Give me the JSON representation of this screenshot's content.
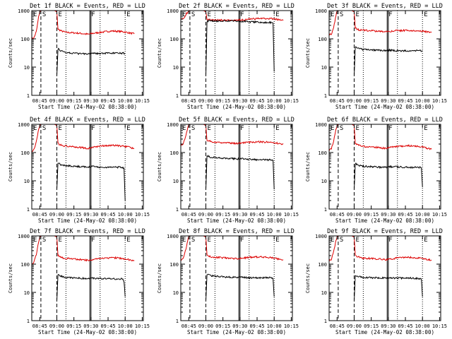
{
  "figure": {
    "panel_title_template": "Det {det} BLACK = Events, RED = LLD",
    "x_axis_label": "Start Time (24-May-02 08:38:00)",
    "y_axis_label": "Counts/sec",
    "x_tick_labels": [
      "08:45",
      "09:00",
      "09:15",
      "09:30",
      "09:45",
      "10:00",
      "10:15"
    ],
    "y_tick_labels": [
      "1",
      "10",
      "100",
      "1000"
    ],
    "marker_labels": [
      "E",
      "S",
      "E",
      "F",
      "E"
    ],
    "events_color": "#000000",
    "lld_color": "#dd0000"
  },
  "chart_data": [
    {
      "type": "line",
      "title": "Det 1f BLACK = Events, RED = LLD",
      "xlabel": "Start Time (24-May-02 08:38:00)",
      "ylabel": "Counts/sec",
      "x_unit": "minutes after 08:38:00",
      "xlim": [
        0,
        98
      ],
      "ylim": [
        1,
        1000
      ],
      "y_scale": "log",
      "legend": "none",
      "markers": [
        {
          "x": 0,
          "label": "E"
        },
        {
          "x": 8,
          "label": "S"
        },
        {
          "x": 22,
          "label": "E"
        },
        {
          "x": 51,
          "label": "F"
        },
        {
          "x": 82,
          "label": "E"
        }
      ],
      "series": [
        {
          "color": "#dd0000",
          "x": [
            0,
            2,
            4,
            6,
            7,
            8,
            13,
            20,
            22,
            23,
            26,
            30,
            40,
            50,
            53,
            60,
            70,
            80,
            90
          ],
          "y": [
            100,
            110,
            180,
            600,
            900,
            1000,
            1000,
            1000,
            900,
            220,
            190,
            170,
            160,
            145,
            155,
            170,
            190,
            180,
            150
          ]
        },
        {
          "color": "#000000",
          "x": [
            22,
            23,
            25,
            30,
            40,
            50,
            53,
            60,
            70,
            82
          ],
          "y": [
            5,
            45,
            38,
            33,
            30,
            30,
            32,
            30,
            31,
            31
          ]
        }
      ]
    },
    {
      "type": "line",
      "title": "Det 2f BLACK = Events, RED = LLD",
      "xlabel": "Start Time (24-May-02 08:38:00)",
      "ylabel": "Counts/sec",
      "x_unit": "minutes after 08:38:00",
      "xlim": [
        0,
        98
      ],
      "ylim": [
        1,
        1000
      ],
      "y_scale": "log",
      "legend": "none",
      "markers": [
        {
          "x": 0,
          "label": "E"
        },
        {
          "x": 8,
          "label": "S"
        },
        {
          "x": 22,
          "label": "E"
        },
        {
          "x": 51,
          "label": "F"
        },
        {
          "x": 82,
          "label": "E"
        }
      ],
      "series": [
        {
          "color": "#dd0000",
          "x": [
            0,
            3,
            5,
            7,
            8,
            13,
            20,
            22,
            23,
            26,
            30,
            40,
            50,
            53,
            60,
            70,
            80,
            90
          ],
          "y": [
            500,
            520,
            800,
            950,
            1000,
            1000,
            1000,
            900,
            480,
            470,
            460,
            460,
            460,
            470,
            500,
            520,
            520,
            450
          ]
        },
        {
          "color": "#000000",
          "x": [
            22,
            23,
            25,
            30,
            40,
            50,
            53,
            60,
            70,
            80,
            81,
            82
          ],
          "y": [
            5,
            420,
            440,
            430,
            430,
            430,
            420,
            400,
            380,
            380,
            360,
            7
          ]
        }
      ]
    },
    {
      "type": "line",
      "title": "Det 3f BLACK = Events, RED = LLD",
      "xlabel": "Start Time (24-May-02 08:38:00)",
      "ylabel": "Counts/sec",
      "x_unit": "minutes after 08:38:00",
      "xlim": [
        0,
        98
      ],
      "ylim": [
        1,
        1000
      ],
      "y_scale": "log",
      "legend": "none",
      "markers": [
        {
          "x": 0,
          "label": "E"
        },
        {
          "x": 8,
          "label": "S"
        },
        {
          "x": 22,
          "label": "E"
        },
        {
          "x": 51,
          "label": "F"
        },
        {
          "x": 82,
          "label": "E"
        }
      ],
      "series": [
        {
          "color": "#dd0000",
          "x": [
            0,
            2,
            4,
            6,
            7,
            8,
            13,
            20,
            22,
            23,
            26,
            30,
            40,
            50,
            53,
            60,
            70,
            80,
            90
          ],
          "y": [
            140,
            150,
            250,
            700,
            950,
            1000,
            1000,
            1000,
            900,
            240,
            210,
            200,
            190,
            180,
            185,
            195,
            200,
            190,
            170
          ]
        },
        {
          "color": "#000000",
          "x": [
            22,
            23,
            25,
            30,
            40,
            50,
            53,
            60,
            70,
            82
          ],
          "y": [
            5,
            55,
            46,
            42,
            40,
            38,
            40,
            38,
            38,
            38
          ]
        }
      ]
    },
    {
      "type": "line",
      "title": "Det 4f BLACK = Events, RED = LLD",
      "xlabel": "Start Time (24-May-02 08:38:00)",
      "ylabel": "Counts/sec",
      "x_unit": "minutes after 08:38:00",
      "xlim": [
        0,
        98
      ],
      "ylim": [
        1,
        1000
      ],
      "y_scale": "log",
      "legend": "none",
      "markers": [
        {
          "x": 0,
          "label": "E"
        },
        {
          "x": 8,
          "label": "S"
        },
        {
          "x": 22,
          "label": "E"
        },
        {
          "x": 51,
          "label": "F"
        },
        {
          "x": 82,
          "label": "E"
        }
      ],
      "series": [
        {
          "color": "#dd0000",
          "x": [
            0,
            2,
            4,
            6,
            7,
            8,
            13,
            20,
            22,
            23,
            26,
            30,
            40,
            50,
            53,
            60,
            70,
            80,
            90
          ],
          "y": [
            110,
            130,
            250,
            650,
            900,
            1000,
            1000,
            1000,
            900,
            210,
            180,
            170,
            155,
            140,
            150,
            170,
            180,
            170,
            140
          ]
        },
        {
          "color": "#000000",
          "x": [
            22,
            23,
            25,
            30,
            40,
            50,
            53,
            60,
            70,
            80,
            81,
            82
          ],
          "y": [
            5,
            45,
            38,
            34,
            32,
            31,
            32,
            30,
            30,
            30,
            28,
            2
          ]
        }
      ]
    },
    {
      "type": "line",
      "title": "Det 5f BLACK = Events, RED = LLD",
      "xlabel": "Start Time (24-May-02 08:38:00)",
      "ylabel": "Counts/sec",
      "x_unit": "minutes after 08:38:00",
      "xlim": [
        0,
        98
      ],
      "ylim": [
        1,
        1000
      ],
      "y_scale": "log",
      "legend": "none",
      "markers": [
        {
          "x": 0,
          "label": "E"
        },
        {
          "x": 8,
          "label": "S"
        },
        {
          "x": 22,
          "label": "E"
        },
        {
          "x": 51,
          "label": "F"
        },
        {
          "x": 82,
          "label": "E"
        }
      ],
      "series": [
        {
          "color": "#dd0000",
          "x": [
            0,
            2,
            4,
            6,
            7,
            8,
            13,
            20,
            22,
            23,
            26,
            30,
            40,
            50,
            53,
            60,
            70,
            80,
            90
          ],
          "y": [
            180,
            200,
            350,
            750,
            950,
            1000,
            1000,
            1000,
            900,
            280,
            250,
            230,
            220,
            210,
            215,
            230,
            240,
            230,
            200
          ]
        },
        {
          "color": "#000000",
          "x": [
            22,
            23,
            25,
            30,
            40,
            50,
            53,
            60,
            70,
            80,
            81,
            82
          ],
          "y": [
            5,
            80,
            70,
            65,
            62,
            60,
            60,
            58,
            55,
            55,
            52,
            5
          ]
        }
      ]
    },
    {
      "type": "line",
      "title": "Det 6f BLACK = Events, RED = LLD",
      "xlabel": "Start Time (24-May-02 08:38:00)",
      "ylabel": "Counts/sec",
      "x_unit": "minutes after 08:38:00",
      "xlim": [
        0,
        98
      ],
      "ylim": [
        1,
        1000
      ],
      "y_scale": "log",
      "legend": "none",
      "markers": [
        {
          "x": 0,
          "label": "E"
        },
        {
          "x": 8,
          "label": "S"
        },
        {
          "x": 22,
          "label": "E"
        },
        {
          "x": 51,
          "label": "F"
        },
        {
          "x": 82,
          "label": "E"
        }
      ],
      "series": [
        {
          "color": "#dd0000",
          "x": [
            0,
            2,
            4,
            6,
            7,
            8,
            13,
            20,
            22,
            23,
            26,
            30,
            40,
            50,
            53,
            60,
            70,
            80,
            90
          ],
          "y": [
            120,
            140,
            260,
            650,
            900,
            1000,
            1000,
            1000,
            900,
            210,
            180,
            165,
            155,
            140,
            150,
            165,
            175,
            165,
            130
          ]
        },
        {
          "color": "#000000",
          "x": [
            22,
            23,
            25,
            30,
            40,
            50,
            53,
            60,
            70,
            80,
            81,
            82
          ],
          "y": [
            5,
            42,
            36,
            33,
            31,
            30,
            32,
            31,
            30,
            30,
            29,
            6
          ]
        }
      ]
    },
    {
      "type": "line",
      "title": "Det 7f BLACK = Events, RED = LLD",
      "xlabel": "Start Time (24-May-02 08:38:00)",
      "ylabel": "Counts/sec",
      "x_unit": "minutes after 08:38:00",
      "xlim": [
        0,
        98
      ],
      "ylim": [
        1,
        1000
      ],
      "y_scale": "log",
      "legend": "none",
      "markers": [
        {
          "x": 0,
          "label": "E"
        },
        {
          "x": 8,
          "label": "S"
        },
        {
          "x": 22,
          "label": "E"
        },
        {
          "x": 51,
          "label": "F"
        },
        {
          "x": 82,
          "label": "E"
        }
      ],
      "series": [
        {
          "color": "#dd0000",
          "x": [
            0,
            2,
            4,
            6,
            7,
            8,
            13,
            20,
            22,
            23,
            26,
            30,
            40,
            50,
            53,
            60,
            70,
            80,
            90
          ],
          "y": [
            100,
            120,
            220,
            600,
            900,
            1000,
            1000,
            1000,
            900,
            200,
            170,
            160,
            150,
            135,
            145,
            160,
            170,
            160,
            130
          ]
        },
        {
          "color": "#000000",
          "x": [
            22,
            23,
            25,
            30,
            40,
            50,
            53,
            60,
            70,
            80,
            81,
            82
          ],
          "y": [
            5,
            45,
            38,
            34,
            32,
            31,
            32,
            31,
            30,
            30,
            25,
            7
          ]
        }
      ]
    },
    {
      "type": "line",
      "title": "Det 8f BLACK = Events, RED = LLD",
      "xlabel": "Start Time (24-May-02 08:38:00)",
      "ylabel": "Counts/sec",
      "x_unit": "minutes after 08:38:00",
      "xlim": [
        0,
        98
      ],
      "ylim": [
        1,
        1000
      ],
      "y_scale": "log",
      "legend": "none",
      "markers": [
        {
          "x": 0,
          "label": "E"
        },
        {
          "x": 8,
          "label": "S"
        },
        {
          "x": 22,
          "label": "E"
        },
        {
          "x": 51,
          "label": "F"
        },
        {
          "x": 82,
          "label": "E"
        }
      ],
      "series": [
        {
          "color": "#dd0000",
          "x": [
            0,
            2,
            4,
            6,
            7,
            8,
            13,
            20,
            22,
            23,
            26,
            30,
            40,
            50,
            53,
            60,
            70,
            80,
            90
          ],
          "y": [
            140,
            160,
            280,
            700,
            950,
            1000,
            1000,
            1000,
            900,
            210,
            185,
            175,
            165,
            155,
            160,
            175,
            180,
            170,
            140
          ]
        },
        {
          "color": "#000000",
          "x": [
            22,
            23,
            25,
            30,
            40,
            50,
            53,
            60,
            70,
            80,
            81,
            82
          ],
          "y": [
            5,
            45,
            40,
            37,
            35,
            34,
            35,
            33,
            33,
            33,
            30,
            7
          ]
        }
      ]
    },
    {
      "type": "line",
      "title": "Det 9f BLACK = Events, RED = LLD",
      "xlabel": "Start Time (24-May-02 08:38:00)",
      "ylabel": "Counts/sec",
      "x_unit": "minutes after 08:38:00",
      "xlim": [
        0,
        98
      ],
      "ylim": [
        1,
        1000
      ],
      "y_scale": "log",
      "legend": "none",
      "markers": [
        {
          "x": 0,
          "label": "E"
        },
        {
          "x": 8,
          "label": "S"
        },
        {
          "x": 22,
          "label": "E"
        },
        {
          "x": 51,
          "label": "F"
        },
        {
          "x": 82,
          "label": "E"
        }
      ],
      "series": [
        {
          "color": "#dd0000",
          "x": [
            0,
            2,
            4,
            6,
            7,
            8,
            13,
            20,
            22,
            23,
            26,
            30,
            40,
            50,
            53,
            60,
            70,
            80,
            90
          ],
          "y": [
            130,
            150,
            270,
            680,
            920,
            1000,
            1000,
            1000,
            900,
            200,
            180,
            165,
            155,
            145,
            150,
            165,
            175,
            165,
            140
          ]
        },
        {
          "color": "#000000",
          "x": [
            22,
            23,
            25,
            30,
            40,
            50,
            53,
            60,
            70,
            80,
            81,
            82
          ],
          "y": [
            5,
            42,
            37,
            34,
            33,
            32,
            33,
            32,
            32,
            31,
            30,
            7
          ]
        }
      ]
    }
  ]
}
